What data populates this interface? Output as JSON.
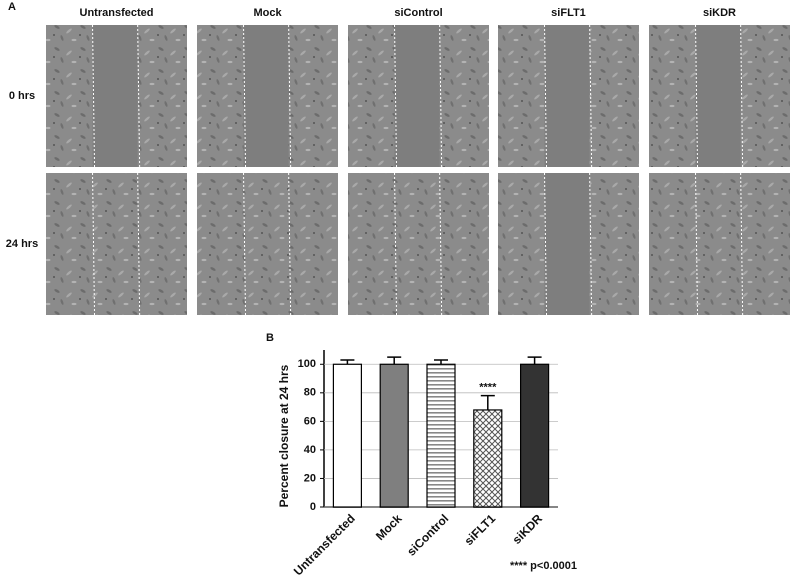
{
  "panel_a": {
    "label": "A",
    "columns": [
      "Untransfected",
      "Mock",
      "siControl",
      "siFLT1",
      "siKDR"
    ],
    "rows": [
      "0 hrs",
      "24 hrs"
    ]
  },
  "chart_data": {
    "type": "bar",
    "panel_label": "B",
    "y_label": "Percent closure at 24 hrs",
    "categories": [
      "Untransfected",
      "Mock",
      "siControl",
      "siFLT1",
      "siKDR"
    ],
    "values": [
      100,
      100,
      100,
      68,
      100
    ],
    "errors": [
      3,
      5,
      3,
      10,
      5
    ],
    "fills": [
      "#ffffff",
      "#7f7f7f",
      "hstripe",
      "crosshatch",
      "#333333"
    ],
    "ylim": [
      0,
      110
    ],
    "yticks": [
      0,
      20,
      40,
      60,
      80,
      100
    ],
    "grid": true,
    "annotation": {
      "category": "siFLT1",
      "text": "****"
    },
    "footnote": "**** p<0.0001"
  }
}
